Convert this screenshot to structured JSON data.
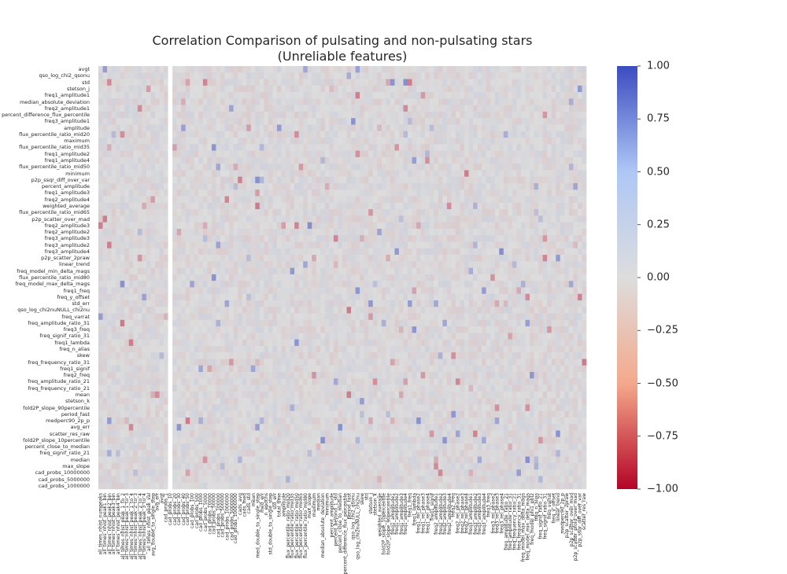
{
  "chart_data": {
    "type": "heatmap",
    "title": "Correlation Comparison of pulsating and non-pulsating stars",
    "subtitle": "(Unreliable features)",
    "colormap": "coolwarm",
    "colors": {
      "min": "#b40426",
      "center": "#dddddd",
      "max": "#3b4cc0",
      "gap": "#ffffff"
    },
    "colorbar": {
      "min": -1.0,
      "max": 1.0,
      "tick_labels": [
        "1.00",
        "0.75",
        "0.50",
        "0.25",
        "0.00",
        "−0.25",
        "−0.50",
        "−0.75",
        "−1.00"
      ]
    },
    "row_labels": [
      "avgt",
      "qso_log_chi2_qsonu",
      "std",
      "stetson_j",
      "freq1_amplitude1",
      "median_absolute_deviation",
      "freq2_amplitude1",
      "percent_difference_flux_percentile",
      "freq3_amplitude1",
      "amplitude",
      "flux_percentile_ratio_mid20",
      "maximum",
      "flux_percentile_ratio_mid35",
      "freq1_amplitude2",
      "freq1_amplitude4",
      "flux_percentile_ratio_mid50",
      "minimum",
      "p2p_ssqr_diff_over_var",
      "percent_amplitude",
      "freq1_amplitude3",
      "freq2_amplitude4",
      "weighted_average",
      "flux_percentile_ratio_mid65",
      "p2p_scatter_over_mad",
      "freq2_amplitude3",
      "freq2_amplitude2",
      "freq3_amplitude3",
      "freq3_amplitude2",
      "freq3_amplitude4",
      "p2p_scatter_2praw",
      "linear_trend",
      "freq_model_min_delta_mags",
      "flux_percentile_ratio_mid80",
      "freq_model_max_delta_mags",
      "freq1_freq",
      "freq_y_offset",
      "std_err",
      "qso_log_chi2nuNULL_chi2nu",
      "freq_varrat",
      "freq_amplitude_ratio_31",
      "freq3_freq",
      "freq_signif_ratio_31",
      "freq1_lambda",
      "freq_n_alias",
      "skew",
      "freq_frequency_ratio_31",
      "freq1_signif",
      "freq2_freq",
      "freq_amplitude_ratio_21",
      "freq_frequency_ratio_21",
      "mean",
      "stetson_k",
      "fold2P_slope_90percentile",
      "period_fast",
      "medperc90_2p_p",
      "avg_err",
      "scatter_res_raw",
      "fold2P_slope_10percentile",
      "percent_close_to_median",
      "freq_signif_ratio_21",
      "median",
      "max_slope",
      "cad_probs_10000000",
      "cad_probs_5000000",
      "cad_probs_1000000"
    ],
    "col_labels": [
      "all_times_nhist_numpeaks",
      "all_times_nhist_peak1_bin",
      "all_times_nhist_peak2_bin",
      "all_times_nhist_peak3_bin",
      "all_times_nhist_peak4_bin",
      "all_times_nhist_peak_1_to_2",
      "all_times_nhist_peak_1_to_3",
      "all_times_nhist_peak_1_to_4",
      "all_times_nhist_peak_2_to_3",
      "all_times_nhist_peak_2_to_4",
      "all_times_nhist_peak_3_to_4",
      "all_times_nhist_peak_val",
      "avg_double_to_single_step",
      "avg_err",
      "avgt",
      "cad_probs_1",
      "cad_probs_10",
      "cad_probs_20",
      "cad_probs_30",
      "cad_probs_40",
      "cad_probs_50",
      "cad_probs_100",
      "cad_probs_500",
      "cad_probs_1000",
      "cad_probs_5000",
      "cad_probs_10000",
      "cad_probs_50000",
      "cad_probs_100000",
      "cad_probs_500000",
      "cad_probs_1000000",
      "cad_probs_5000000",
      "cad_probs_10000000",
      "cads_avg",
      "cads_med",
      "cads_std",
      "mean",
      "med_double_to_single_step",
      "med_err",
      "n_epochs",
      "std_double_to_single_step",
      "std_err",
      "total_time",
      "amplitude",
      "flux_percentile_ratio_mid20",
      "flux_percentile_ratio_mid35",
      "flux_percentile_ratio_mid50",
      "flux_percentile_ratio_mid65",
      "flux_percentile_ratio_mid80",
      "max_slope",
      "maximum",
      "median",
      "median_absolute_deviation",
      "minimum",
      "percent_amplitude",
      "percent_beyond_1_std",
      "percent_close_to_median",
      "percent_difference_flux_percentile",
      "period_fast",
      "qso_log_chi2_qsonu",
      "qso_log_chi2nuNULL_chi2nu",
      "skew",
      "std",
      "stetson_j",
      "stetson_k",
      "weighted_average",
      "fold2P_slope_10percentile",
      "fold2P_slope_90percentile",
      "freq1_amplitude1",
      "freq1_amplitude2",
      "freq1_amplitude3",
      "freq1_amplitude4",
      "freq1_freq",
      "freq1_lambda",
      "freq1_rel_phase2",
      "freq1_rel_phase3",
      "freq1_rel_phase4",
      "freq1_signif",
      "freq2_amplitude1",
      "freq2_amplitude2",
      "freq2_amplitude3",
      "freq2_amplitude4",
      "freq2_freq",
      "freq2_rel_phase2",
      "freq2_rel_phase3",
      "freq2_rel_phase4",
      "freq3_amplitude1",
      "freq3_amplitude2",
      "freq3_amplitude3",
      "freq3_amplitude4",
      "freq3_freq",
      "freq3_rel_phase2",
      "freq3_rel_phase3",
      "freq3_rel_phase4",
      "freq_amplitude_ratio_21",
      "freq_amplitude_ratio_31",
      "freq_frequency_ratio_21",
      "freq_frequency_ratio_31",
      "freq_model_max_delta_mags",
      "freq_model_min_delta_mags",
      "freq_model_phi1_phi2",
      "freq_n_alias",
      "freq_signif_ratio_21",
      "freq_signif_ratio_31",
      "freq_varrat",
      "freq_y_offset",
      "linear_trend",
      "medperc90_2p_p",
      "p2p_scatter_2praw",
      "p2p_scatter_over_mad",
      "p2p_scatter_pfold_over_mad",
      "p2p_ssqr_diff_over_var",
      "scatter_res_raw"
    ],
    "blank_columns": [
      16
    ],
    "value_range": [
      -0.45,
      0.55
    ],
    "note_values": "Most cells are near 0.00 (grey); a few cells reach about 0.5 (blue) and about -0.45 (red)."
  }
}
